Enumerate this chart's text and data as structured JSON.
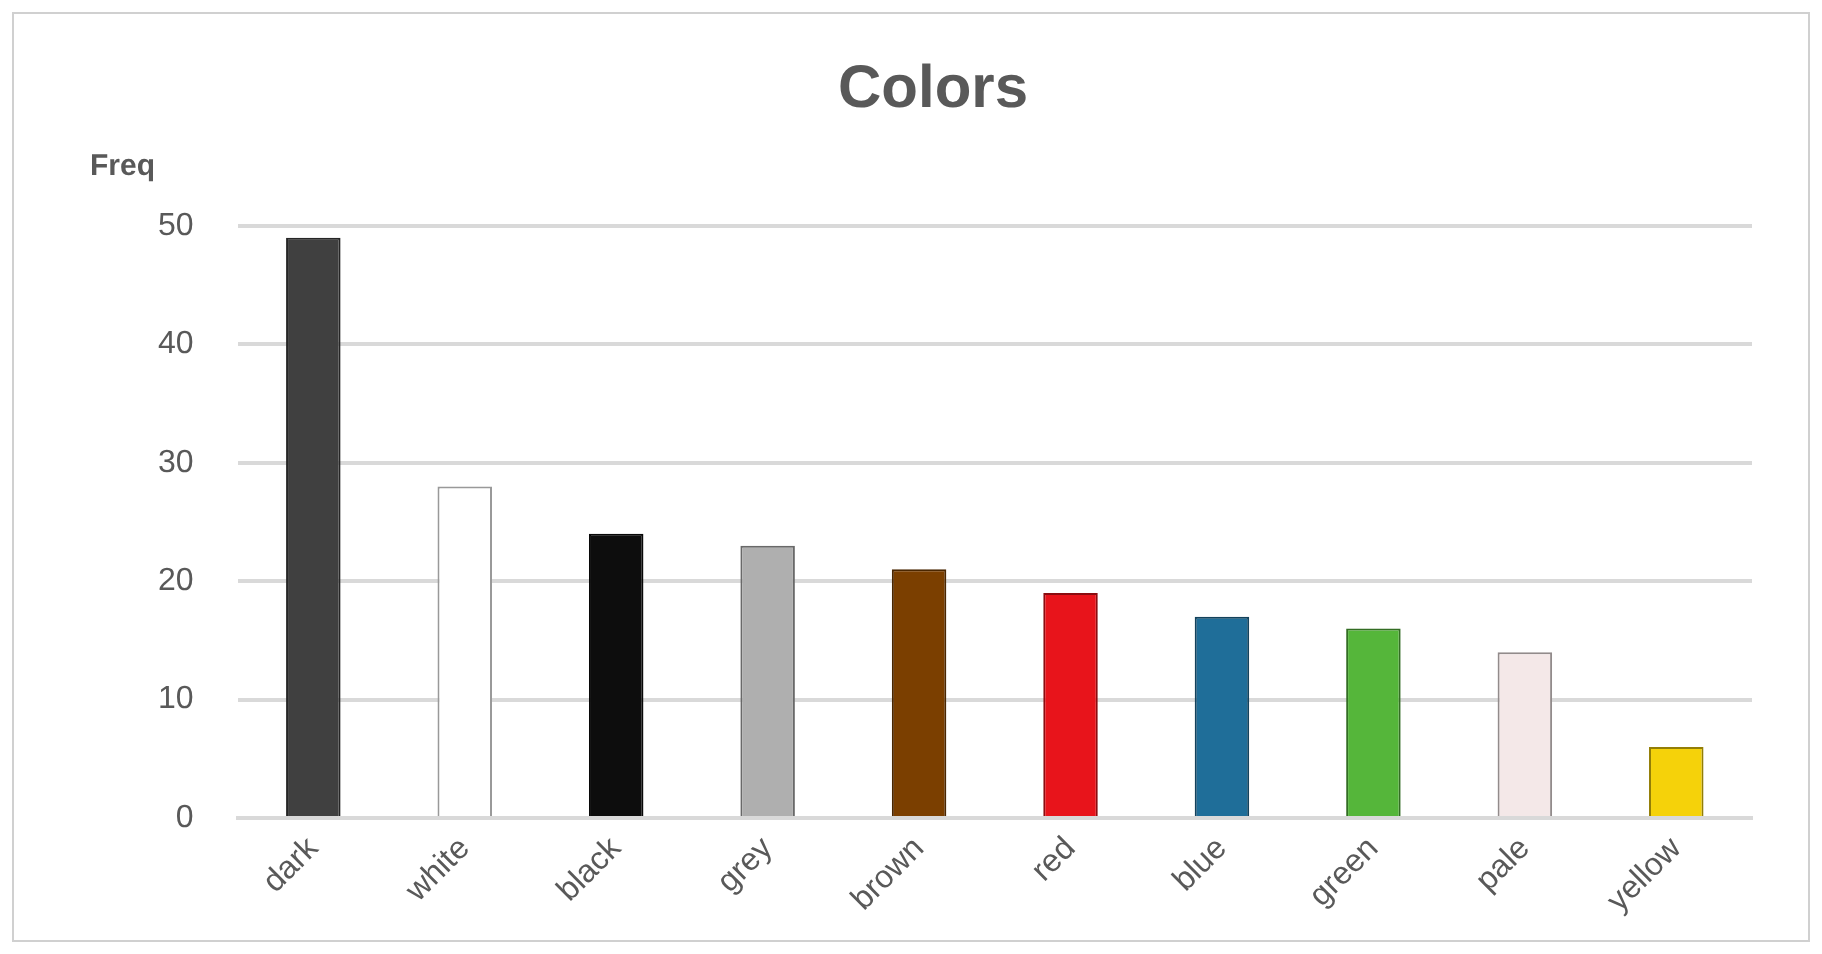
{
  "chart_data": {
    "type": "bar",
    "title": "Colors",
    "ylabel": "Freq",
    "categories": [
      "dark",
      "white",
      "black",
      "grey",
      "brown",
      "red",
      "blue",
      "green",
      "pale",
      "yellow"
    ],
    "values": [
      49,
      28,
      24,
      23,
      21,
      19,
      17,
      16,
      14,
      6
    ],
    "colors": [
      "#404040",
      "#ffffff",
      "#0d0d0d",
      "#afafaf",
      "#7b3f00",
      "#e8141b",
      "#1f6e99",
      "#55b63a",
      "#f4e8e8",
      "#f5d20a"
    ],
    "ylim": [
      0,
      50
    ],
    "yticks": [
      0,
      10,
      20,
      30,
      40,
      50
    ],
    "grid": "y",
    "legend": false
  }
}
